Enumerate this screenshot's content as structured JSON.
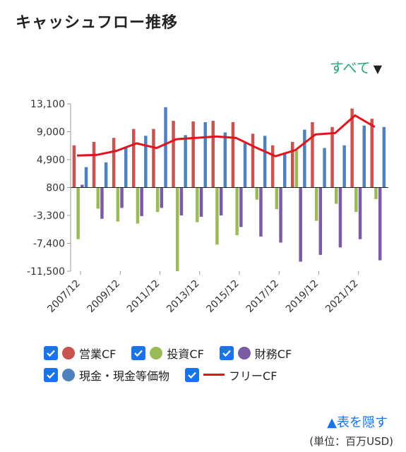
{
  "title": "キャッシュフロー推移",
  "filter": {
    "label": "すべて",
    "icon": "caret-down-icon"
  },
  "colors": {
    "operating": "#c9534f",
    "investing": "#9bbb59",
    "financing": "#7b5aa6",
    "cash": "#4f81bd",
    "free": "#e0141e",
    "checkbox": "#1a73e8"
  },
  "legend": [
    {
      "label": "営業CF",
      "key": "operating",
      "marker": "dot"
    },
    {
      "label": "投資CF",
      "key": "investing",
      "marker": "dot"
    },
    {
      "label": "財務CF",
      "key": "financing",
      "marker": "dot"
    },
    {
      "label": "現金・現金等価物",
      "key": "cash",
      "marker": "dot"
    },
    {
      "label": "フリーCF",
      "key": "free",
      "marker": "line"
    }
  ],
  "hide_link": "▲表を隠す",
  "unit": "(単位：百万USD)",
  "chart_data": {
    "type": "bar",
    "categories": [
      "2007/12",
      "2008/12",
      "2009/12",
      "2010/12",
      "2011/12",
      "2012/12",
      "2013/12",
      "2014/12",
      "2015/12",
      "2016/12",
      "2017/12",
      "2018/12",
      "2019/12",
      "2020/12",
      "2021/12",
      "2022/12"
    ],
    "x_tick_labels": [
      "2007/12",
      "2009/12",
      "2011/12",
      "2013/12",
      "2015/12",
      "2017/12",
      "2019/12",
      "2021/12"
    ],
    "y_tick_labels": [
      "13,100",
      "9,000",
      "4,900",
      "800",
      "-3,300",
      "-7,400",
      "-11,500"
    ],
    "ylim": [
      -11500,
      13100
    ],
    "series": [
      {
        "name": "営業CF",
        "values": [
          7000,
          7500,
          8100,
          9400,
          9400,
          10600,
          10500,
          10600,
          10400,
          8700,
          7000,
          7500,
          10400,
          9700,
          12400,
          10900
        ]
      },
      {
        "name": "投資CF",
        "values": [
          -6800,
          -2300,
          -4200,
          -4500,
          -2800,
          -11500,
          -4300,
          -7600,
          -6200,
          -1000,
          -2400,
          6300,
          -4100,
          -1600,
          -2800,
          -900
        ]
      },
      {
        "name": "財務CF",
        "values": [
          1200,
          -3800,
          -2200,
          -3400,
          -2200,
          -3300,
          -3500,
          -3300,
          -5000,
          -6400,
          -7300,
          -10100,
          -9100,
          -8000,
          -6800,
          -9900
        ]
      },
      {
        "name": "現金・現金等価物",
        "values": [
          3800,
          4500,
          6800,
          8400,
          12600,
          8500,
          10400,
          8900,
          7300,
          8400,
          5900,
          9300,
          6600,
          7000,
          9900,
          9700
        ]
      },
      {
        "name": "フリーCF",
        "values": [
          5500,
          5600,
          6200,
          7300,
          6600,
          7900,
          8100,
          8300,
          8100,
          6700,
          5400,
          6300,
          8600,
          8800,
          11400,
          9700
        ]
      }
    ],
    "grid": false,
    "legend_position": "bottom"
  }
}
